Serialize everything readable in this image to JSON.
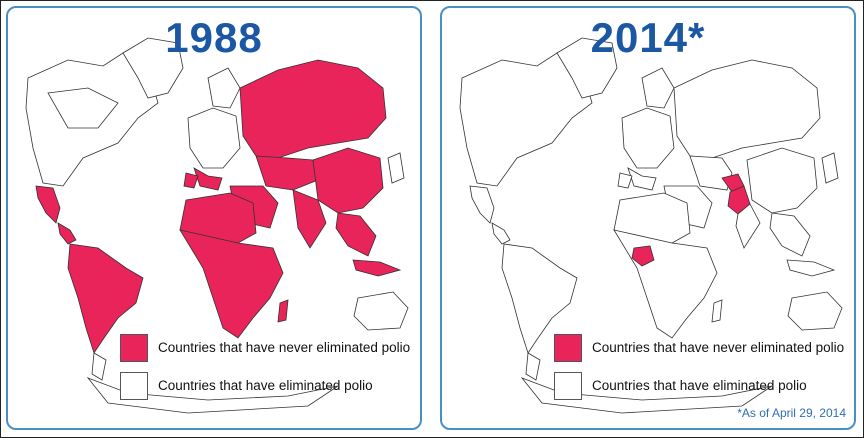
{
  "colors": {
    "endemic": "#e8245a",
    "eliminated": "#ffffff",
    "title": "#1b57a3",
    "panel_border": "#4a8fc4",
    "note": "#2d6fb3"
  },
  "panels": [
    {
      "year": "1988",
      "legend": [
        {
          "label": "Countries that have never eliminated polio",
          "color": "#e8245a"
        },
        {
          "label": "Countries that have eliminated polio",
          "color": "#ffffff"
        }
      ],
      "endemic_regions": [
        "Mexico",
        "Central America",
        "South America",
        "Africa",
        "Southern Europe",
        "Middle East",
        "Russia",
        "Central Asia",
        "South Asia",
        "China",
        "Southeast Asia"
      ]
    },
    {
      "year": "2014*",
      "legend": [
        {
          "label": "Countries that have never eliminated polio",
          "color": "#e8245a"
        },
        {
          "label": "Countries that have eliminated polio",
          "color": "#ffffff"
        }
      ],
      "endemic_regions": [
        "Nigeria",
        "Pakistan",
        "Afghanistan"
      ],
      "note": "*As of April 29, 2014"
    }
  ]
}
